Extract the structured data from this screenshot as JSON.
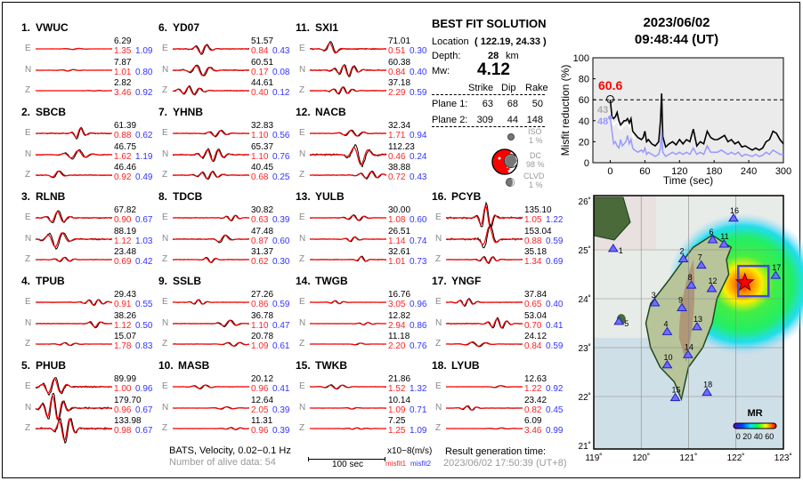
{
  "header": {
    "date": "2023/06/02",
    "time": "09:48:44  (UT)"
  },
  "stations": [
    {
      "num": "1.",
      "name": "VWUC",
      "comps": [
        {
          "c": "E",
          "amp": "6.29",
          "m1": "1.35",
          "m2": "1.09"
        },
        {
          "c": "N",
          "amp": "7.87",
          "m1": "1.01",
          "m2": "0.80"
        },
        {
          "c": "Z",
          "amp": "2.82",
          "m1": "3.46",
          "m2": "0.92"
        }
      ]
    },
    {
      "num": "2.",
      "name": "SBCB",
      "comps": [
        {
          "c": "E",
          "amp": "61.39",
          "m1": "0.88",
          "m2": "0.62"
        },
        {
          "c": "N",
          "amp": "46.75",
          "m1": "1.62",
          "m2": "1.19"
        },
        {
          "c": "Z",
          "amp": "46.46",
          "m1": "0.92",
          "m2": "0.49"
        }
      ]
    },
    {
      "num": "3.",
      "name": "RLNB",
      "comps": [
        {
          "c": "E",
          "amp": "67.82",
          "m1": "0.90",
          "m2": "0.67"
        },
        {
          "c": "N",
          "amp": "88.19",
          "m1": "1.12",
          "m2": "1.03"
        },
        {
          "c": "Z",
          "amp": "23.48",
          "m1": "0.69",
          "m2": "0.42"
        }
      ]
    },
    {
      "num": "4.",
      "name": "TPUB",
      "comps": [
        {
          "c": "E",
          "amp": "29.43",
          "m1": "0.91",
          "m2": "0.55"
        },
        {
          "c": "N",
          "amp": "38.26",
          "m1": "1.12",
          "m2": "0.50"
        },
        {
          "c": "Z",
          "amp": "15.07",
          "m1": "1.78",
          "m2": "0.83"
        }
      ]
    },
    {
      "num": "5.",
      "name": "PHUB",
      "comps": [
        {
          "c": "E",
          "amp": "89.99",
          "m1": "1.00",
          "m2": "0.96"
        },
        {
          "c": "N",
          "amp": "179.70",
          "m1": "0.96",
          "m2": "0.67"
        },
        {
          "c": "Z",
          "amp": "133.98",
          "m1": "0.98",
          "m2": "0.67"
        }
      ]
    },
    {
      "num": "6.",
      "name": "YD07",
      "comps": [
        {
          "c": "E",
          "amp": "51.57",
          "m1": "0.84",
          "m2": "0.43"
        },
        {
          "c": "N",
          "amp": "60.51",
          "m1": "0.17",
          "m2": "0.08"
        },
        {
          "c": "Z",
          "amp": "44.61",
          "m1": "0.40",
          "m2": "0.12"
        }
      ]
    },
    {
      "num": "7.",
      "name": "YHNB",
      "comps": [
        {
          "c": "E",
          "amp": "32.83",
          "m1": "1.10",
          "m2": "0.56"
        },
        {
          "c": "N",
          "amp": "65.37",
          "m1": "1.10",
          "m2": "0.76"
        },
        {
          "c": "Z",
          "amp": "40.45",
          "m1": "0.68",
          "m2": "0.25"
        }
      ]
    },
    {
      "num": "8.",
      "name": "TDCB",
      "comps": [
        {
          "c": "E",
          "amp": "30.82",
          "m1": "0.63",
          "m2": "0.39"
        },
        {
          "c": "N",
          "amp": "47.48",
          "m1": "0.87",
          "m2": "0.60"
        },
        {
          "c": "Z",
          "amp": "31.37",
          "m1": "0.62",
          "m2": "0.30"
        }
      ]
    },
    {
      "num": "9.",
      "name": "SSLB",
      "comps": [
        {
          "c": "E",
          "amp": "27.26",
          "m1": "0.86",
          "m2": "0.59"
        },
        {
          "c": "N",
          "amp": "36.78",
          "m1": "1.10",
          "m2": "0.47"
        },
        {
          "c": "Z",
          "amp": "20.78",
          "m1": "1.09",
          "m2": "0.61"
        }
      ]
    },
    {
      "num": "10.",
      "name": "MASB",
      "comps": [
        {
          "c": "E",
          "amp": "20.12",
          "m1": "0.96",
          "m2": "0.41"
        },
        {
          "c": "N",
          "amp": "12.64",
          "m1": "2.05",
          "m2": "0.39"
        },
        {
          "c": "Z",
          "amp": "11.31",
          "m1": "0.96",
          "m2": "0.39"
        }
      ]
    },
    {
      "num": "11.",
      "name": "SXI1",
      "comps": [
        {
          "c": "E",
          "amp": "71.01",
          "m1": "0.51",
          "m2": "0.30"
        },
        {
          "c": "N",
          "amp": "60.38",
          "m1": "0.84",
          "m2": "0.40"
        },
        {
          "c": "Z",
          "amp": "37.18",
          "m1": "2.29",
          "m2": "0.59"
        }
      ]
    },
    {
      "num": "12.",
      "name": "NACB",
      "comps": [
        {
          "c": "E",
          "amp": "32.34",
          "m1": "1.71",
          "m2": "0.94"
        },
        {
          "c": "N",
          "amp": "112.23",
          "m1": "0.46",
          "m2": "0.24"
        },
        {
          "c": "Z",
          "amp": "38.88",
          "m1": "0.72",
          "m2": "0.43"
        }
      ]
    },
    {
      "num": "13.",
      "name": "YULB",
      "comps": [
        {
          "c": "E",
          "amp": "30.00",
          "m1": "1.08",
          "m2": "0.60"
        },
        {
          "c": "N",
          "amp": "26.51",
          "m1": "1.14",
          "m2": "0.74"
        },
        {
          "c": "Z",
          "amp": "32.61",
          "m1": "1.01",
          "m2": "0.73"
        }
      ]
    },
    {
      "num": "14.",
      "name": "TWGB",
      "comps": [
        {
          "c": "E",
          "amp": "16.76",
          "m1": "3.05",
          "m2": "0.96"
        },
        {
          "c": "N",
          "amp": "12.82",
          "m1": "2.94",
          "m2": "0.86"
        },
        {
          "c": "Z",
          "amp": "11.18",
          "m1": "2.20",
          "m2": "0.76"
        }
      ]
    },
    {
      "num": "15.",
      "name": "TWKB",
      "comps": [
        {
          "c": "E",
          "amp": "21.86",
          "m1": "1.52",
          "m2": "1.32"
        },
        {
          "c": "N",
          "amp": "10.14",
          "m1": "1.09",
          "m2": "0.71"
        },
        {
          "c": "Z",
          "amp": "7.25",
          "m1": "1.25",
          "m2": "1.09"
        }
      ]
    },
    {
      "num": "16.",
      "name": "PCYB",
      "comps": [
        {
          "c": "E",
          "amp": "135.10",
          "m1": "1.05",
          "m2": "1.22"
        },
        {
          "c": "N",
          "amp": "153.04",
          "m1": "0.88",
          "m2": "0.59"
        },
        {
          "c": "Z",
          "amp": "35.18",
          "m1": "1.34",
          "m2": "0.69"
        }
      ]
    },
    {
      "num": "17.",
      "name": "YNGF",
      "comps": [
        {
          "c": "E",
          "amp": "37.84",
          "m1": "0.65",
          "m2": "0.40"
        },
        {
          "c": "N",
          "amp": "53.04",
          "m1": "0.70",
          "m2": "0.41"
        },
        {
          "c": "Z",
          "amp": "24.12",
          "m1": "0.84",
          "m2": "0.59"
        }
      ]
    },
    {
      "num": "18.",
      "name": "LYUB",
      "comps": [
        {
          "c": "E",
          "amp": "12.63",
          "m1": "1.22",
          "m2": "0.92"
        },
        {
          "c": "N",
          "amp": "23.42",
          "m1": "0.82",
          "m2": "0.45"
        },
        {
          "c": "Z",
          "amp": "6.09",
          "m1": "3.46",
          "m2": "0.99"
        }
      ]
    }
  ],
  "solution": {
    "title": "BEST FIT SOLUTION",
    "location_label": "Location",
    "location_value": "( 122.19,  24.33 )",
    "depth_label": "Depth:",
    "depth_value": "28",
    "depth_unit": "km",
    "mw_label": "Mw:",
    "mw_value": "4.12",
    "columns": [
      "Strike",
      "Dip",
      "Rake"
    ],
    "planes": [
      {
        "label": "Plane 1:",
        "values": [
          "63",
          "68",
          "50"
        ]
      },
      {
        "label": "Plane 2:",
        "values": [
          "309",
          "44",
          "148"
        ]
      }
    ],
    "components": [
      {
        "name": "ISO",
        "pct": "1  %"
      },
      {
        "name": "DC",
        "pct": "98 %"
      },
      {
        "name": "CLVD",
        "pct": "1  %"
      }
    ]
  },
  "footer": {
    "info": "BATS, Velocity, 0.02−0.1 Hz",
    "alive": "Number of alive data: 54",
    "scale_label": "100 sec",
    "units": "x10−8(m/s)",
    "misfit1": "misfit1",
    "misfit2": "misfit2",
    "result_label": "Result generation time:",
    "result_time": "2023/06/02 17:50:39 (UT+8)"
  },
  "colors": {
    "observed": "#000000",
    "synthetic": "#ff0000",
    "misfit1": "#ff2222",
    "misfit2": "#3333ff"
  },
  "chart_data": {
    "type": "line",
    "xlabel": "Time (sec)",
    "ylabel": "Misfit reduction (%)",
    "xlim": [
      -30,
      300
    ],
    "ylim": [
      0,
      100
    ],
    "xticks": [
      0,
      60,
      120,
      180,
      240,
      300
    ],
    "yticks": [
      0,
      20,
      40,
      60,
      80,
      100
    ],
    "reference_line": 60,
    "best_value": "60.6",
    "labels": {
      "gray": "43",
      "blue": "48"
    },
    "series": [
      {
        "name": "misfit-reduction",
        "color": "#000000",
        "x": [
          0,
          3,
          6,
          9,
          12,
          15,
          18,
          21,
          24,
          27,
          30,
          33,
          36,
          39,
          42,
          48,
          54,
          57,
          60,
          63,
          66,
          72,
          78,
          84,
          87,
          89,
          91,
          96,
          102,
          108,
          114,
          120,
          126,
          132,
          138,
          144,
          150,
          156,
          162,
          168,
          174,
          180,
          186,
          192,
          198,
          204,
          210,
          216,
          222,
          228,
          234,
          240,
          246,
          252,
          258,
          264,
          270,
          276,
          282,
          288,
          294,
          300
        ],
        "y": [
          60,
          44,
          42,
          44,
          48,
          40,
          36,
          38,
          40,
          40,
          42,
          38,
          42,
          30,
          28,
          24,
          22,
          24,
          30,
          20,
          22,
          18,
          16,
          20,
          40,
          66,
          25,
          15,
          18,
          20,
          17,
          22,
          18,
          22,
          20,
          32,
          16,
          20,
          18,
          30,
          24,
          22,
          22,
          24,
          26,
          20,
          22,
          18,
          20,
          15,
          16,
          14,
          12,
          14,
          12,
          14,
          20,
          22,
          30,
          28,
          22,
          18
        ]
      },
      {
        "name": "misfit-reduction-2",
        "color": "#9999ff",
        "x": [
          0,
          3,
          6,
          9,
          12,
          15,
          18,
          21,
          24,
          27,
          30,
          33,
          36,
          39,
          42,
          48,
          54,
          57,
          60,
          63,
          66,
          72,
          78,
          84,
          87,
          89,
          91,
          96,
          102,
          108,
          114,
          120,
          126,
          132,
          138,
          144,
          150,
          156,
          162,
          168,
          174,
          180,
          186,
          192,
          198,
          204,
          210,
          216,
          222,
          228,
          234,
          240,
          246,
          252,
          258,
          264,
          270,
          276,
          282,
          288,
          294,
          300
        ],
        "y": [
          43,
          30,
          18,
          20,
          16,
          14,
          22,
          16,
          18,
          20,
          26,
          18,
          22,
          14,
          12,
          10,
          12,
          10,
          14,
          8,
          10,
          8,
          6,
          8,
          14,
          30,
          10,
          6,
          8,
          10,
          8,
          10,
          8,
          10,
          8,
          14,
          8,
          10,
          8,
          16,
          10,
          10,
          10,
          12,
          10,
          8,
          10,
          8,
          10,
          6,
          8,
          7,
          6,
          8,
          6,
          7,
          10,
          8,
          12,
          10,
          8,
          8
        ]
      },
      {
        "name": "misfit-reduction-3",
        "color": "#ffffff",
        "x": [
          0,
          3,
          6,
          9,
          12,
          15,
          18,
          21,
          24,
          27,
          30,
          33,
          36,
          39,
          42
        ],
        "y": [
          48,
          40,
          36,
          38,
          40,
          34,
          32,
          34,
          36,
          36,
          38,
          34,
          36,
          26,
          22
        ]
      }
    ]
  },
  "map": {
    "lon_ticks": [
      "119˚",
      "120˚",
      "121˚",
      "122˚",
      "123˚"
    ],
    "lat_ticks": [
      "26˚",
      "25˚",
      "24˚",
      "23˚",
      "22˚",
      "21˚"
    ],
    "event": {
      "lon": 122.19,
      "lat": 24.33
    },
    "colorbar_title": "MR",
    "colorbar_ticks": "0 20 40 60",
    "stations": [
      {
        "id": "1",
        "lon": 119.41,
        "lat": 25.02
      },
      {
        "id": "2",
        "lon": 120.89,
        "lat": 24.81
      },
      {
        "id": "3",
        "lon": 120.29,
        "lat": 23.91
      },
      {
        "id": "4",
        "lon": 120.55,
        "lat": 23.32
      },
      {
        "id": "5",
        "lon": 119.53,
        "lat": 23.53
      },
      {
        "id": "6",
        "lon": 121.51,
        "lat": 25.2
      },
      {
        "id": "7",
        "lon": 121.27,
        "lat": 24.68
      },
      {
        "id": "8",
        "lon": 121.06,
        "lat": 24.27
      },
      {
        "id": "9",
        "lon": 120.86,
        "lat": 23.81
      },
      {
        "id": "10",
        "lon": 120.55,
        "lat": 22.64
      },
      {
        "id": "11",
        "lon": 121.75,
        "lat": 25.11
      },
      {
        "id": "12",
        "lon": 121.49,
        "lat": 24.2
      },
      {
        "id": "13",
        "lon": 121.18,
        "lat": 23.42
      },
      {
        "id": "14",
        "lon": 120.99,
        "lat": 22.85
      },
      {
        "id": "15",
        "lon": 120.72,
        "lat": 21.97
      },
      {
        "id": "16",
        "lon": 121.95,
        "lat": 25.64
      },
      {
        "id": "17",
        "lon": 122.84,
        "lat": 24.47
      },
      {
        "id": "18",
        "lon": 121.39,
        "lat": 22.08
      }
    ]
  }
}
